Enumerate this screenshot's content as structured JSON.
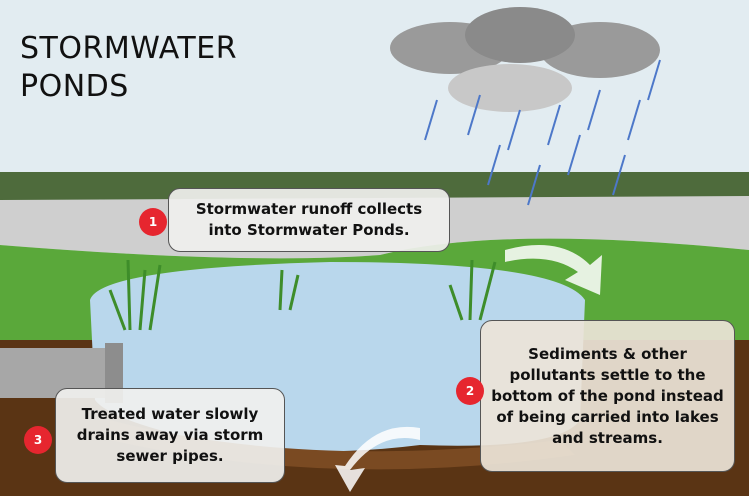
{
  "header": {
    "title": "STORMWATER PONDS"
  },
  "steps": [
    {
      "number": "1",
      "text": "Stormwater runoff collects into Stormwater Ponds."
    },
    {
      "number": "2",
      "text": "Sediments & other pollutants settle to the bottom of the pond instead of being carried into lakes and streams."
    },
    {
      "number": "3",
      "text": "Treated water slowly drains away via storm sewer pipes."
    }
  ]
}
